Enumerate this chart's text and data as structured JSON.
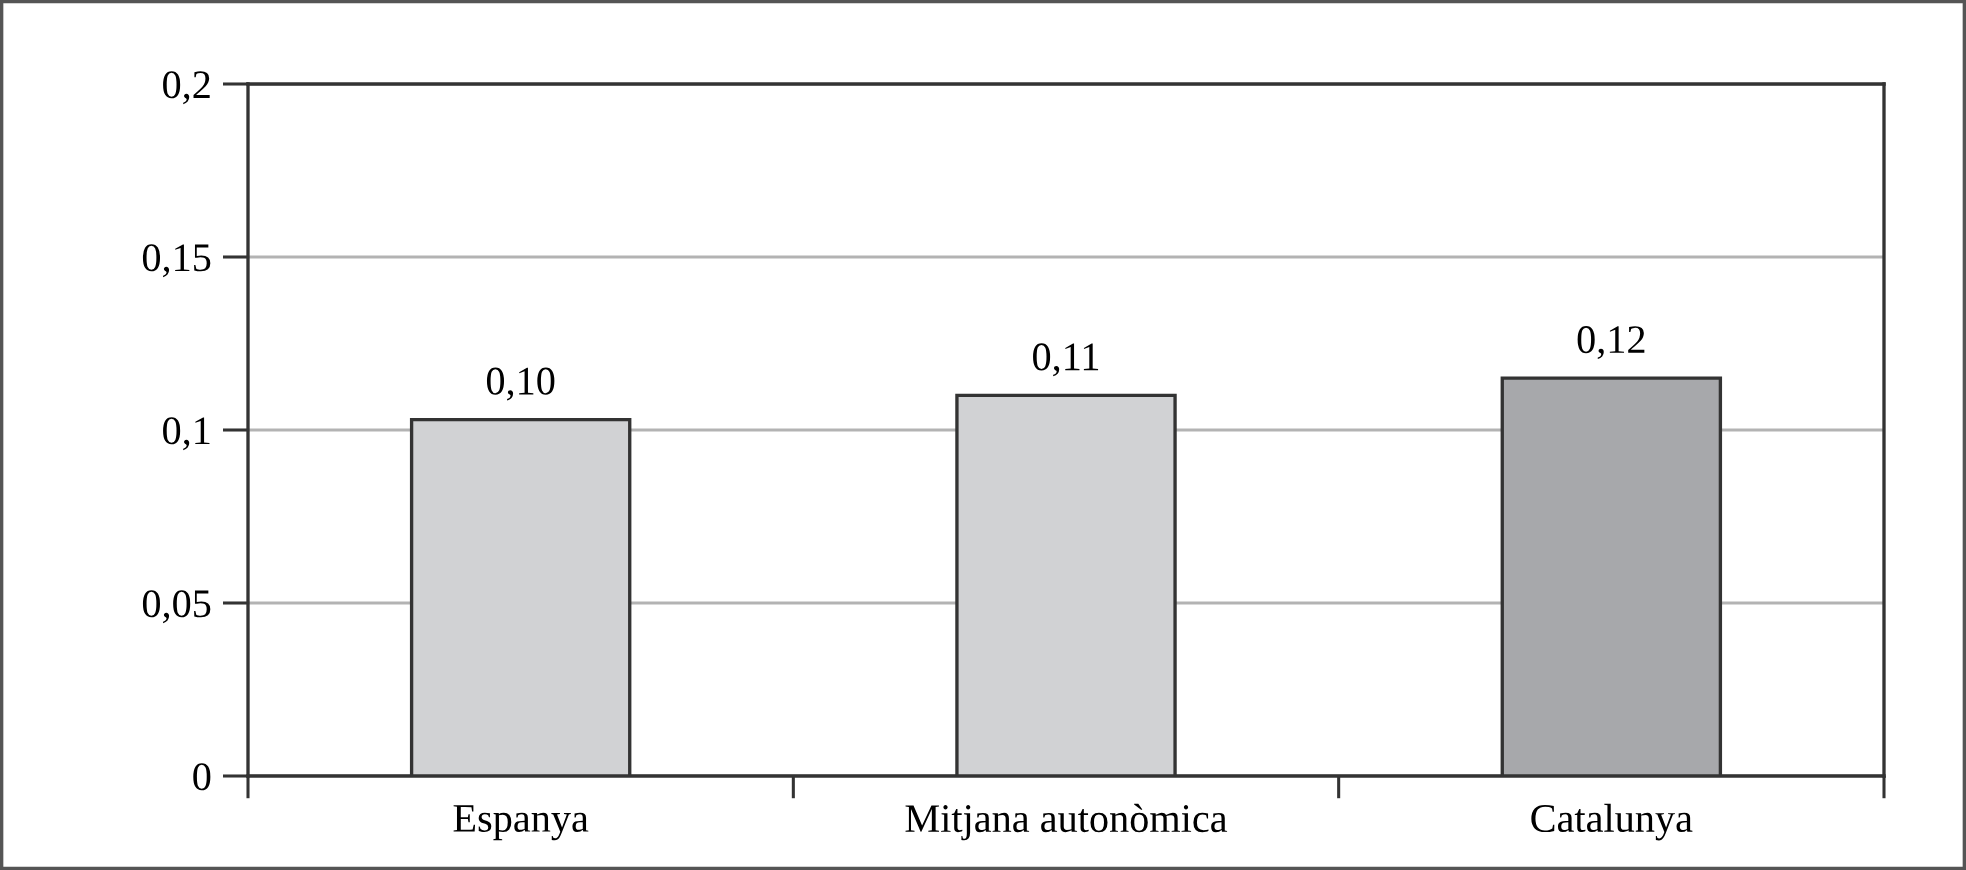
{
  "chart_data": {
    "type": "bar",
    "categories": [
      "Espanya",
      "Mitjana autonòmica",
      "Catalunya"
    ],
    "values": [
      0.103,
      0.11,
      0.115
    ],
    "colors": [
      "#d1d2d4",
      "#d1d2d4",
      "#a7a8ab"
    ],
    "value_labels": [
      "0,10",
      "0,11",
      "0,12"
    ],
    "ylim": [
      0,
      0.2
    ],
    "yticks": [
      0,
      {
        "value": 0.05,
        "label": "0,05"
      },
      {
        "value": 0.1,
        "label": "0,1"
      },
      {
        "value": 0.15,
        "label": "0,15"
      },
      {
        "value": 0.2,
        "label": "0,2"
      }
    ],
    "grid": "y"
  }
}
